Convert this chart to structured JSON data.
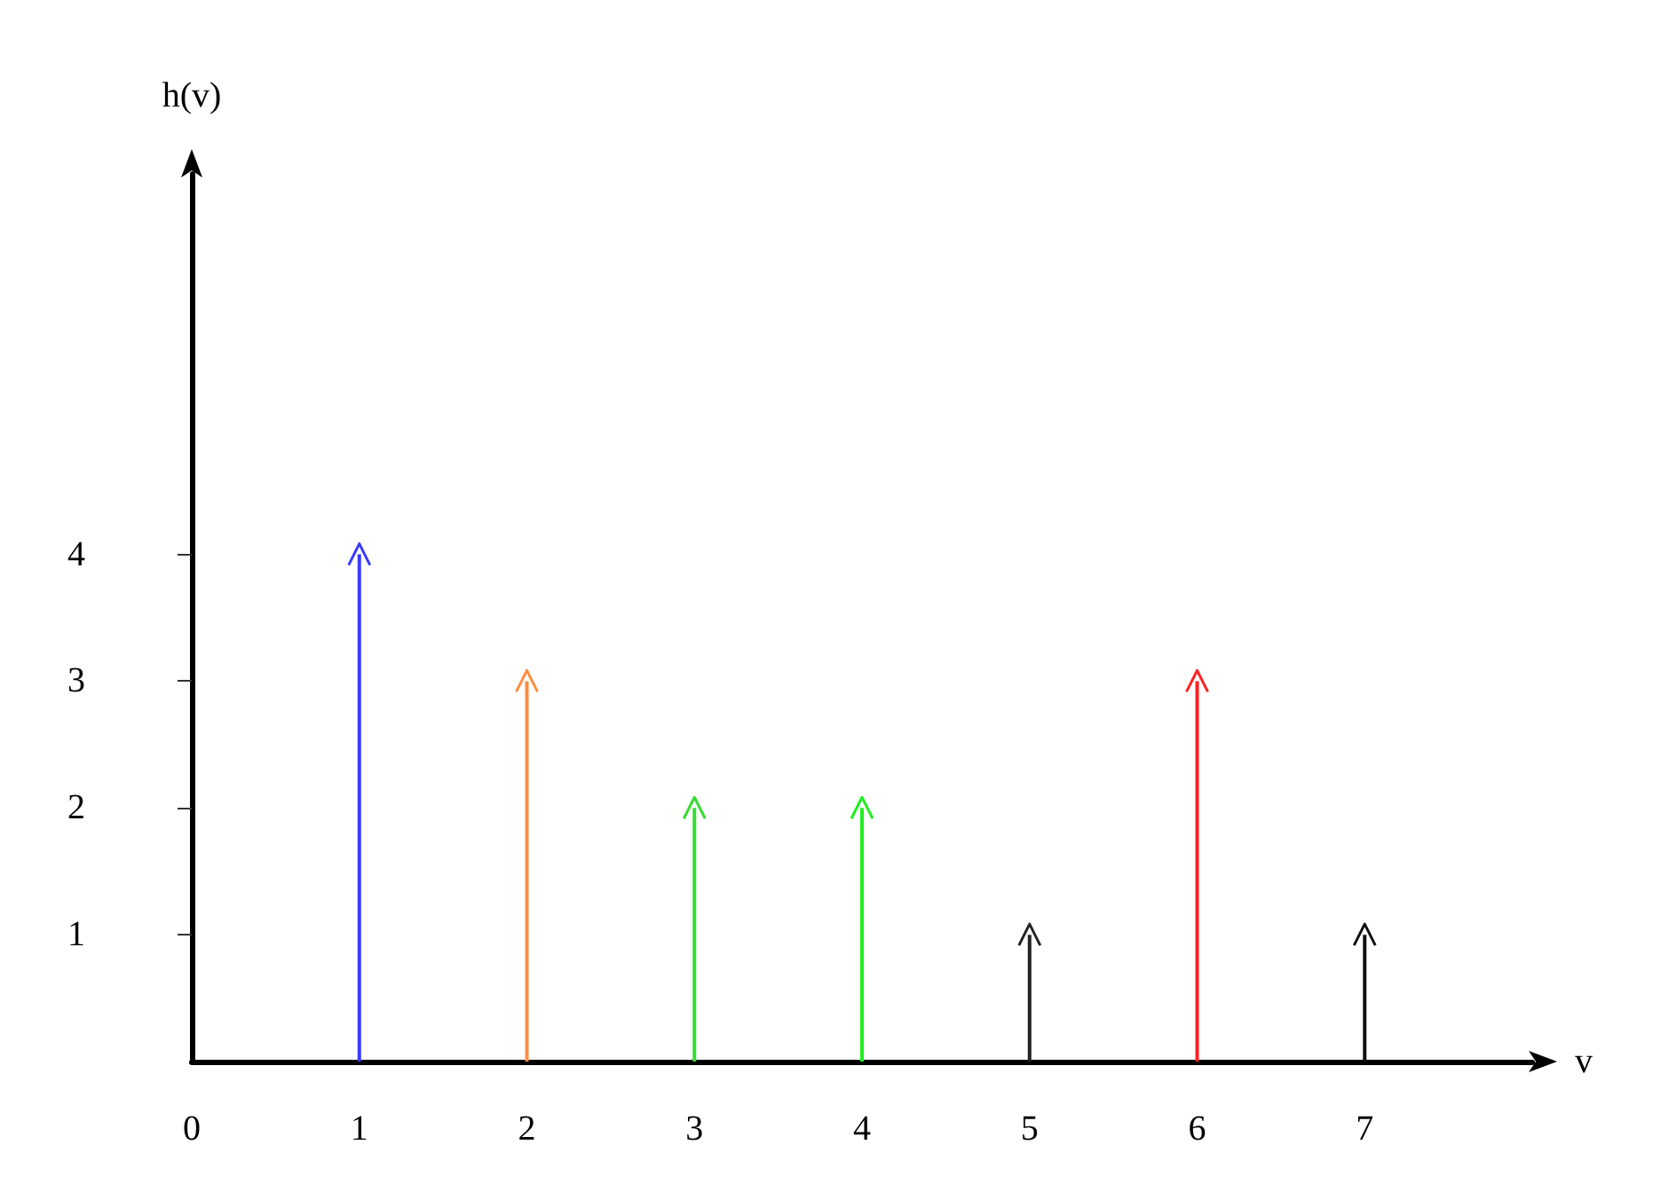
{
  "chart_data": {
    "type": "lollipop",
    "xlabel": "v",
    "ylabel": "h(v)",
    "x": [
      1,
      2,
      3,
      4,
      5,
      6,
      7
    ],
    "values": [
      4,
      3,
      2,
      2,
      1,
      3,
      1
    ],
    "colors": [
      "#3a3aff",
      "#ff8c40",
      "#33dd33",
      "#22ee22",
      "#222222",
      "#ff2020",
      "#111111"
    ],
    "xlim": [
      0,
      8
    ],
    "ylim": [
      0,
      7
    ],
    "xticks": [
      0,
      1,
      2,
      3,
      4,
      5,
      6,
      7
    ],
    "yticks": [
      1,
      2,
      3,
      4
    ],
    "grid": false
  }
}
